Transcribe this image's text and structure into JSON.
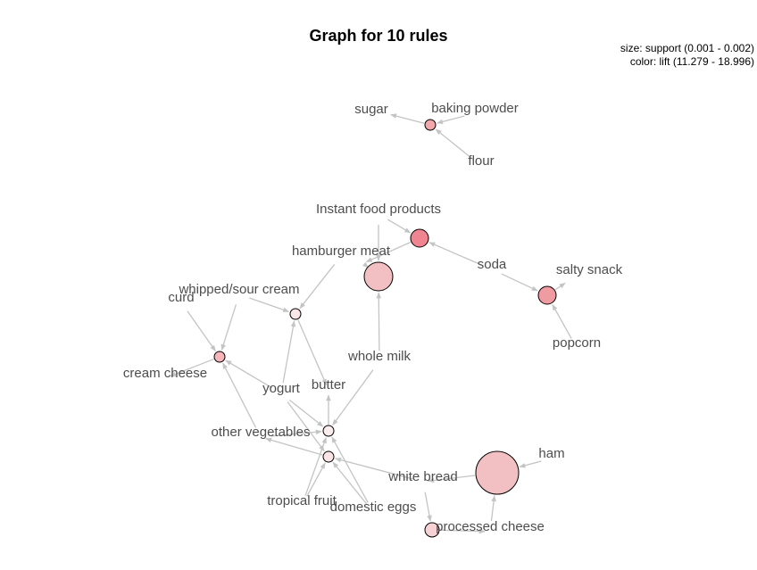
{
  "title": "Graph for 10 rules",
  "legend": {
    "size": "size: support (0.001 - 0.002)",
    "color": "color: lift (11.279 - 18.996)"
  },
  "items": [
    {
      "id": "sugar",
      "label": "sugar"
    },
    {
      "id": "baking_powder",
      "label": "baking powder"
    },
    {
      "id": "flour",
      "label": "flour"
    },
    {
      "id": "instant_food",
      "label": "Instant food products"
    },
    {
      "id": "hamburger",
      "label": "hamburger meat"
    },
    {
      "id": "soda",
      "label": "soda"
    },
    {
      "id": "salty_snack",
      "label": "salty snack"
    },
    {
      "id": "popcorn",
      "label": "popcorn"
    },
    {
      "id": "curd",
      "label": "curd"
    },
    {
      "id": "whipped",
      "label": "whipped/sour cream"
    },
    {
      "id": "cream_cheese",
      "label": "cream cheese"
    },
    {
      "id": "whole_milk",
      "label": "whole milk"
    },
    {
      "id": "yogurt",
      "label": "yogurt"
    },
    {
      "id": "butter",
      "label": "butter"
    },
    {
      "id": "other_veg",
      "label": "other vegetables"
    },
    {
      "id": "tropical",
      "label": "tropical fruit"
    },
    {
      "id": "domestic_eggs",
      "label": "domestic eggs"
    },
    {
      "id": "white_bread",
      "label": "white bread"
    },
    {
      "id": "ham",
      "label": "ham"
    },
    {
      "id": "processed_cheese",
      "label": "processed cheese"
    }
  ],
  "rules": [
    {
      "id": "r1",
      "lhs": [
        "baking_powder",
        "flour"
      ],
      "rhs": [
        "sugar"
      ],
      "color": "#f4a6ad"
    },
    {
      "id": "r2",
      "lhs": [
        "instant_food",
        "soda"
      ],
      "rhs": [
        "hamburger"
      ],
      "color": "#f08591"
    },
    {
      "id": "r3",
      "lhs": [
        "whole_milk",
        "instant_food"
      ],
      "rhs": [
        "hamburger"
      ],
      "color": "#f2c0c3"
    },
    {
      "id": "r4",
      "lhs": [
        "soda",
        "popcorn"
      ],
      "rhs": [
        "salty_snack"
      ],
      "color": "#f09aa2"
    },
    {
      "id": "r5",
      "lhs": [
        "hamburger",
        "yogurt",
        "whipped"
      ],
      "rhs": [
        "butter"
      ],
      "color": "#fae6e8"
    },
    {
      "id": "r6",
      "lhs": [
        "curd",
        "whipped",
        "other_veg",
        "yogurt"
      ],
      "rhs": [
        "cream_cheese"
      ],
      "color": "#f5b5ba"
    },
    {
      "id": "r7",
      "lhs": [
        "whole_milk",
        "yogurt",
        "tropical",
        "other_veg",
        "domestic_eggs"
      ],
      "rhs": [
        "butter"
      ],
      "color": "#fbecee"
    },
    {
      "id": "r8",
      "lhs": [
        "tropical",
        "yogurt",
        "domestic_eggs",
        "white_bread"
      ],
      "rhs": [
        "other_veg"
      ],
      "color": "#fbe4e6"
    },
    {
      "id": "r9",
      "lhs": [
        "ham",
        "processed_cheese"
      ],
      "rhs": [
        "white_bread"
      ],
      "color": "#f2c0c3"
    },
    {
      "id": "r10",
      "lhs": [
        "white_bread"
      ],
      "rhs": [
        "processed_cheese"
      ],
      "color": "#f7d2d5"
    }
  ]
}
